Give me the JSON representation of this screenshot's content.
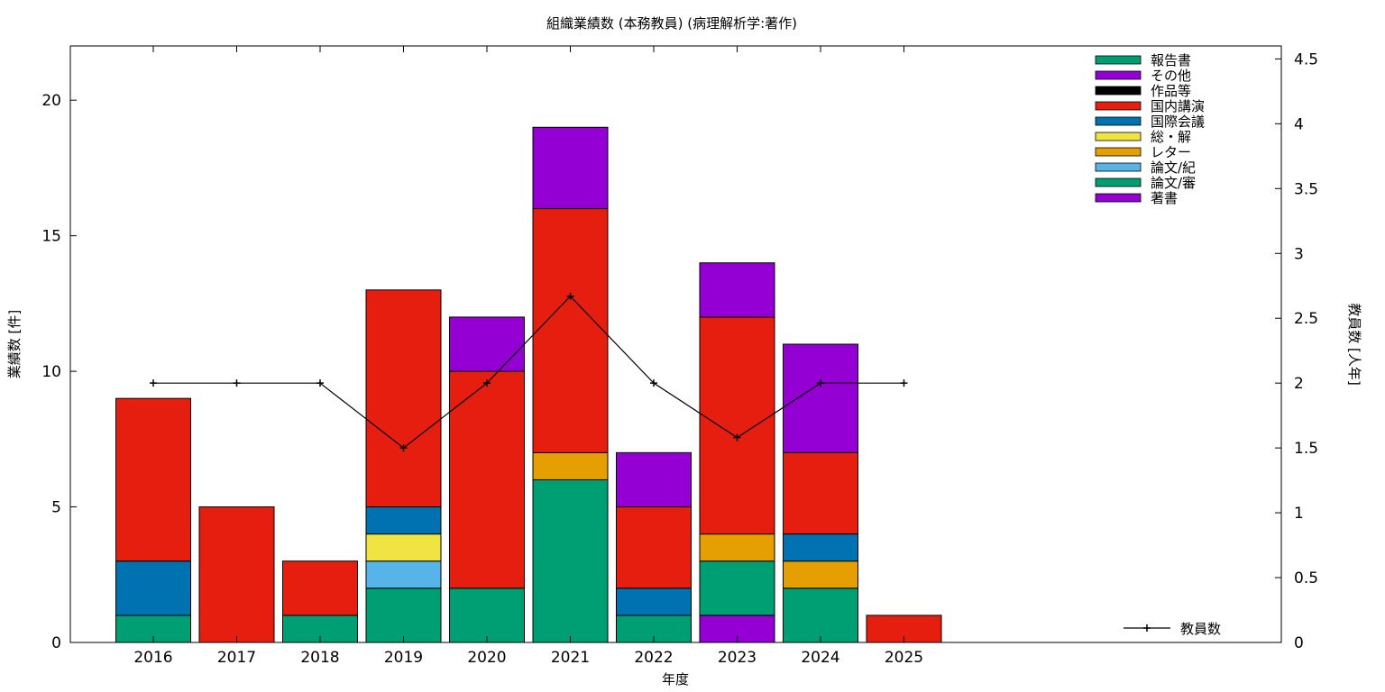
{
  "chart_data": {
    "type": "bar",
    "stacked": true,
    "title": "組織業績数 (本務教員) (病理解析学:著作)",
    "xlabel": "年度",
    "ylabel": "業績数 [件]",
    "y2label": "教員数 [人年]",
    "categories": [
      "2016",
      "2017",
      "2018",
      "2019",
      "2020",
      "2021",
      "2022",
      "2023",
      "2024",
      "2025"
    ],
    "ylim": [
      0,
      22
    ],
    "y2lim": [
      0,
      4.6
    ],
    "yticks": [
      0,
      5,
      10,
      15,
      20
    ],
    "y2ticks": [
      "0",
      "0.5",
      "1",
      "1.5",
      "2",
      "2.5",
      "3",
      "3.5",
      "4",
      "4.5"
    ],
    "grid": false,
    "legend_position": "top-right",
    "series": [
      {
        "name": "著書",
        "color": "#9400d3",
        "values": [
          0,
          0,
          0,
          0,
          0,
          0,
          0,
          1,
          0,
          0
        ]
      },
      {
        "name": "論文/審",
        "color": "#009e73",
        "values": [
          1,
          0,
          1,
          2,
          2,
          6,
          1,
          2,
          2,
          0
        ]
      },
      {
        "name": "論文/紀",
        "color": "#56b4e9",
        "values": [
          0,
          0,
          0,
          1,
          0,
          0,
          0,
          0,
          0,
          0
        ]
      },
      {
        "name": "レター",
        "color": "#e69f00",
        "values": [
          0,
          0,
          0,
          0,
          0,
          1,
          0,
          1,
          1,
          0
        ]
      },
      {
        "name": "総・解",
        "color": "#f0e442",
        "values": [
          0,
          0,
          0,
          1,
          0,
          0,
          0,
          0,
          0,
          0
        ]
      },
      {
        "name": "国際会議",
        "color": "#0072b2",
        "values": [
          2,
          0,
          0,
          1,
          0,
          0,
          1,
          0,
          1,
          0
        ]
      },
      {
        "name": "国内講演",
        "color": "#e51e10",
        "values": [
          6,
          5,
          2,
          8,
          8,
          9,
          3,
          8,
          3,
          1
        ]
      },
      {
        "name": "作品等",
        "color": "#000000",
        "values": [
          0,
          0,
          0,
          0,
          0,
          0,
          0,
          0,
          0,
          0
        ]
      },
      {
        "name": "その他",
        "color": "#9400d3",
        "values": [
          0,
          0,
          0,
          0,
          2,
          3,
          2,
          2,
          4,
          0
        ]
      },
      {
        "name": "報告書",
        "color": "#009e73",
        "values": [
          0,
          0,
          0,
          0,
          0,
          0,
          0,
          0,
          0,
          0
        ]
      }
    ],
    "line_series": {
      "name": "教員数",
      "color": "#000000",
      "axis": "y2",
      "values": [
        2,
        2,
        2,
        1.5,
        2,
        2.67,
        2,
        1.58,
        2,
        2
      ]
    }
  }
}
